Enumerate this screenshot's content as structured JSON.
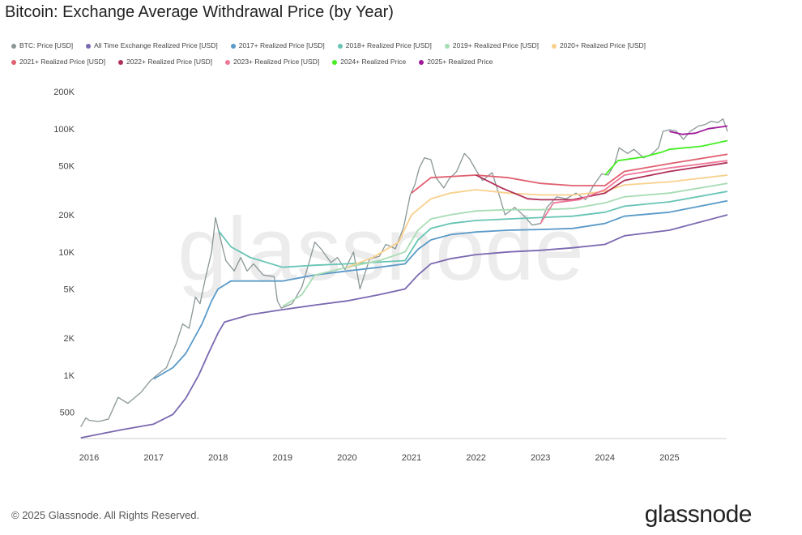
{
  "title": "Bitcoin: Exchange Average Withdrawal Price (by Year)",
  "footer": "© 2025 Glassnode. All Rights Reserved.",
  "brand": "glassnode",
  "watermark": "glassnode",
  "chart_data": {
    "type": "line",
    "title": "Bitcoin: Exchange Average Withdrawal Price (by Year)",
    "yscale": "log",
    "ylim": [
      310,
      200000
    ],
    "xlim": [
      2015.87,
      2025.9
    ],
    "grid": false,
    "legend_placement": "top",
    "y_ticks": [
      {
        "v": 500,
        "label": "500"
      },
      {
        "v": 1000,
        "label": "1K"
      },
      {
        "v": 2000,
        "label": "2K"
      },
      {
        "v": 5000,
        "label": "5K"
      },
      {
        "v": 10000,
        "label": "10K"
      },
      {
        "v": 20000,
        "label": "20K"
      },
      {
        "v": 50000,
        "label": "50K"
      },
      {
        "v": 100000,
        "label": "100K"
      },
      {
        "v": 200000,
        "label": "200K"
      }
    ],
    "x_ticks": [
      "2016",
      "2017",
      "2018",
      "2019",
      "2020",
      "2021",
      "2022",
      "2023",
      "2024",
      "2025"
    ],
    "series": [
      {
        "name": "BTC: Price [USD]",
        "color": "#8a9696",
        "points": [
          [
            2015.87,
            380
          ],
          [
            2015.95,
            450
          ],
          [
            2016.0,
            430
          ],
          [
            2016.15,
            420
          ],
          [
            2016.3,
            440
          ],
          [
            2016.45,
            660
          ],
          [
            2016.6,
            590
          ],
          [
            2016.8,
            720
          ],
          [
            2016.95,
            900
          ],
          [
            2017.05,
            1000
          ],
          [
            2017.2,
            1150
          ],
          [
            2017.35,
            1800
          ],
          [
            2017.45,
            2600
          ],
          [
            2017.55,
            2400
          ],
          [
            2017.65,
            4300
          ],
          [
            2017.72,
            3800
          ],
          [
            2017.8,
            6000
          ],
          [
            2017.9,
            10000
          ],
          [
            2017.96,
            19000
          ],
          [
            2018.05,
            12000
          ],
          [
            2018.12,
            8500
          ],
          [
            2018.25,
            7000
          ],
          [
            2018.35,
            9000
          ],
          [
            2018.45,
            7000
          ],
          [
            2018.55,
            8000
          ],
          [
            2018.7,
            6500
          ],
          [
            2018.87,
            6300
          ],
          [
            2018.92,
            4000
          ],
          [
            2018.98,
            3500
          ],
          [
            2019.15,
            3800
          ],
          [
            2019.3,
            5200
          ],
          [
            2019.42,
            8500
          ],
          [
            2019.5,
            12000
          ],
          [
            2019.6,
            10500
          ],
          [
            2019.75,
            8200
          ],
          [
            2019.85,
            9000
          ],
          [
            2019.97,
            7200
          ],
          [
            2020.1,
            10000
          ],
          [
            2020.2,
            5000
          ],
          [
            2020.35,
            8800
          ],
          [
            2020.5,
            9200
          ],
          [
            2020.6,
            11500
          ],
          [
            2020.75,
            10600
          ],
          [
            2020.88,
            16000
          ],
          [
            2020.98,
            29000
          ],
          [
            2021.05,
            35000
          ],
          [
            2021.12,
            48000
          ],
          [
            2021.2,
            58000
          ],
          [
            2021.3,
            56000
          ],
          [
            2021.38,
            40000
          ],
          [
            2021.5,
            33000
          ],
          [
            2021.58,
            39000
          ],
          [
            2021.7,
            45000
          ],
          [
            2021.82,
            63000
          ],
          [
            2021.9,
            57000
          ],
          [
            2022.0,
            46000
          ],
          [
            2022.1,
            38000
          ],
          [
            2022.25,
            44000
          ],
          [
            2022.35,
            30000
          ],
          [
            2022.45,
            20000
          ],
          [
            2022.6,
            23000
          ],
          [
            2022.75,
            19500
          ],
          [
            2022.87,
            16500
          ],
          [
            2023.0,
            17000
          ],
          [
            2023.1,
            23000
          ],
          [
            2023.25,
            28000
          ],
          [
            2023.4,
            27000
          ],
          [
            2023.55,
            30000
          ],
          [
            2023.7,
            26500
          ],
          [
            2023.82,
            34500
          ],
          [
            2023.95,
            43000
          ],
          [
            2024.05,
            42000
          ],
          [
            2024.15,
            52000
          ],
          [
            2024.22,
            70000
          ],
          [
            2024.35,
            63000
          ],
          [
            2024.45,
            68000
          ],
          [
            2024.6,
            58000
          ],
          [
            2024.72,
            62000
          ],
          [
            2024.83,
            70000
          ],
          [
            2024.9,
            95000
          ],
          [
            2025.0,
            98000
          ],
          [
            2025.1,
            96000
          ],
          [
            2025.22,
            82000
          ],
          [
            2025.32,
            95000
          ],
          [
            2025.45,
            105000
          ],
          [
            2025.55,
            108000
          ],
          [
            2025.65,
            115000
          ],
          [
            2025.75,
            112000
          ],
          [
            2025.83,
            120000
          ],
          [
            2025.9,
            95000
          ]
        ]
      },
      {
        "name": "All Time Exchange Realized Price [USD]",
        "color": "#7a68b0",
        "points": [
          [
            2015.87,
            310
          ],
          [
            2016.5,
            360
          ],
          [
            2017.0,
            400
          ],
          [
            2017.3,
            480
          ],
          [
            2017.5,
            650
          ],
          [
            2017.7,
            1000
          ],
          [
            2017.85,
            1500
          ],
          [
            2018.0,
            2200
          ],
          [
            2018.1,
            2700
          ],
          [
            2018.5,
            3100
          ],
          [
            2019.0,
            3400
          ],
          [
            2019.5,
            3700
          ],
          [
            2020.0,
            4000
          ],
          [
            2020.5,
            4500
          ],
          [
            2020.9,
            5000
          ],
          [
            2021.1,
            6500
          ],
          [
            2021.3,
            8000
          ],
          [
            2021.6,
            8800
          ],
          [
            2022.0,
            9500
          ],
          [
            2022.5,
            10000
          ],
          [
            2023.0,
            10300
          ],
          [
            2023.5,
            10800
          ],
          [
            2024.0,
            11500
          ],
          [
            2024.3,
            13500
          ],
          [
            2025.0,
            15000
          ],
          [
            2025.9,
            20000
          ]
        ]
      },
      {
        "name": "2017+ Realized Price [USD]",
        "color": "#5a9ac8",
        "points": [
          [
            2017.0,
            930
          ],
          [
            2017.3,
            1150
          ],
          [
            2017.5,
            1500
          ],
          [
            2017.75,
            2600
          ],
          [
            2017.9,
            4000
          ],
          [
            2018.0,
            5000
          ],
          [
            2018.2,
            5800
          ],
          [
            2019.0,
            5800
          ],
          [
            2019.5,
            6500
          ],
          [
            2020.0,
            7000
          ],
          [
            2020.5,
            7500
          ],
          [
            2020.9,
            8000
          ],
          [
            2021.1,
            10500
          ],
          [
            2021.3,
            12500
          ],
          [
            2021.6,
            13800
          ],
          [
            2022.0,
            14500
          ],
          [
            2022.5,
            15000
          ],
          [
            2023.0,
            15200
          ],
          [
            2023.5,
            15500
          ],
          [
            2024.0,
            17000
          ],
          [
            2024.3,
            19500
          ],
          [
            2025.0,
            21000
          ],
          [
            2025.9,
            26000
          ]
        ]
      },
      {
        "name": "2018+ Realized Price [USD]",
        "color": "#66c4b4",
        "points": [
          [
            2018.0,
            15000
          ],
          [
            2018.2,
            11000
          ],
          [
            2018.5,
            9000
          ],
          [
            2019.0,
            7500
          ],
          [
            2019.5,
            7800
          ],
          [
            2020.0,
            8000
          ],
          [
            2020.9,
            8500
          ],
          [
            2021.1,
            12500
          ],
          [
            2021.3,
            15500
          ],
          [
            2021.6,
            17000
          ],
          [
            2022.0,
            18000
          ],
          [
            2022.5,
            18500
          ],
          [
            2023.0,
            19000
          ],
          [
            2023.5,
            19500
          ],
          [
            2024.0,
            21000
          ],
          [
            2024.3,
            23500
          ],
          [
            2025.0,
            25500
          ],
          [
            2025.9,
            31000
          ]
        ]
      },
      {
        "name": "2019+ Realized Price [USD]",
        "color": "#a8dcb4",
        "points": [
          [
            2019.0,
            3600
          ],
          [
            2019.3,
            4500
          ],
          [
            2019.5,
            6500
          ],
          [
            2020.0,
            7500
          ],
          [
            2020.5,
            8500
          ],
          [
            2020.9,
            10000
          ],
          [
            2021.1,
            15000
          ],
          [
            2021.3,
            18500
          ],
          [
            2021.6,
            20000
          ],
          [
            2022.0,
            21500
          ],
          [
            2022.5,
            22000
          ],
          [
            2023.0,
            22000
          ],
          [
            2023.5,
            22500
          ],
          [
            2024.0,
            25000
          ],
          [
            2024.3,
            28000
          ],
          [
            2025.0,
            30000
          ],
          [
            2025.9,
            36000
          ]
        ]
      },
      {
        "name": "2020+ Realized Price [USD]",
        "color": "#f8d08c",
        "points": [
          [
            2020.0,
            7500
          ],
          [
            2020.4,
            9000
          ],
          [
            2020.8,
            12000
          ],
          [
            2021.0,
            20000
          ],
          [
            2021.3,
            27000
          ],
          [
            2021.6,
            30000
          ],
          [
            2022.0,
            32000
          ],
          [
            2022.5,
            30000
          ],
          [
            2023.0,
            29000
          ],
          [
            2023.5,
            29000
          ],
          [
            2024.0,
            31000
          ],
          [
            2024.3,
            35000
          ],
          [
            2025.0,
            37000
          ],
          [
            2025.9,
            42000
          ]
        ]
      },
      {
        "name": "2021+ Realized Price [USD]",
        "color": "#e06070",
        "points": [
          [
            2021.0,
            30000
          ],
          [
            2021.3,
            40000
          ],
          [
            2022.0,
            42000
          ],
          [
            2022.5,
            40000
          ],
          [
            2023.0,
            36000
          ],
          [
            2023.5,
            34500
          ],
          [
            2024.0,
            34500
          ],
          [
            2024.3,
            45000
          ],
          [
            2025.0,
            52000
          ],
          [
            2025.9,
            62000
          ]
        ]
      },
      {
        "name": "2022+ Realized Price [USD]",
        "color": "#b03058",
        "points": [
          [
            2022.0,
            42000
          ],
          [
            2022.4,
            33000
          ],
          [
            2022.8,
            27000
          ],
          [
            2023.0,
            26500
          ],
          [
            2023.5,
            26500
          ],
          [
            2024.0,
            30000
          ],
          [
            2024.3,
            38000
          ],
          [
            2025.0,
            45000
          ],
          [
            2025.9,
            53000
          ]
        ]
      },
      {
        "name": "2023+ Realized Price [USD]",
        "color": "#f07898",
        "points": [
          [
            2023.0,
            17000
          ],
          [
            2023.2,
            25000
          ],
          [
            2023.6,
            26500
          ],
          [
            2024.0,
            32000
          ],
          [
            2024.3,
            42000
          ],
          [
            2025.0,
            48000
          ],
          [
            2025.9,
            55000
          ]
        ]
      },
      {
        "name": "2024+ Realized Price",
        "color": "#44ee22",
        "points": [
          [
            2024.0,
            42000
          ],
          [
            2024.2,
            55000
          ],
          [
            2024.6,
            59000
          ],
          [
            2024.9,
            65000
          ],
          [
            2025.0,
            68000
          ],
          [
            2025.5,
            72000
          ],
          [
            2025.9,
            80000
          ]
        ]
      },
      {
        "name": "2025+ Realized Price",
        "color": "#a0189a",
        "points": [
          [
            2025.0,
            95000
          ],
          [
            2025.2,
            90000
          ],
          [
            2025.4,
            92000
          ],
          [
            2025.6,
            100000
          ],
          [
            2025.9,
            105000
          ]
        ]
      }
    ]
  }
}
